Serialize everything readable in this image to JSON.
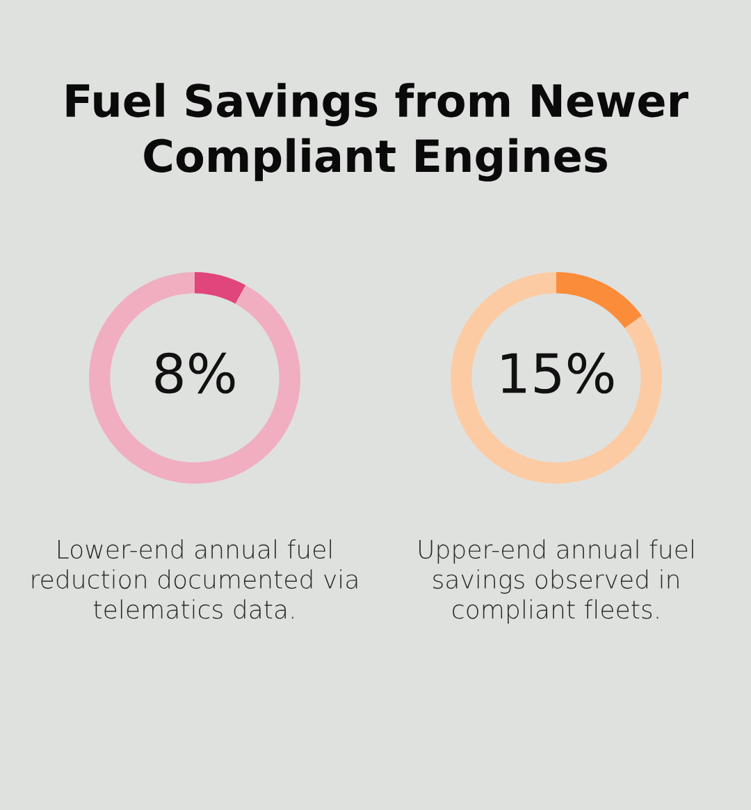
{
  "chart_data": [
    {
      "type": "donut",
      "title": "Fuel Savings from Newer\nCompliant Engines",
      "categories": [
        null,
        null
      ],
      "values": [
        8,
        92
      ],
      "colors": [
        "#e0457b",
        "#f0aec0"
      ],
      "value_labels": [
        "8%",
        null
      ],
      "annotations": [
        "Lower-end annual fuel\nreduction documented via\ntelematics data."
      ]
    },
    {
      "type": "donut",
      "categories": [
        null,
        null
      ],
      "values": [
        15,
        85
      ],
      "colors": [
        "#fb8c3a",
        "#fccba3"
      ],
      "value_labels": [
        "15%",
        null
      ],
      "annotations": [
        "Upper-end annual fuel\nsavings observed in\ncompliant fleets."
      ]
    }
  ]
}
